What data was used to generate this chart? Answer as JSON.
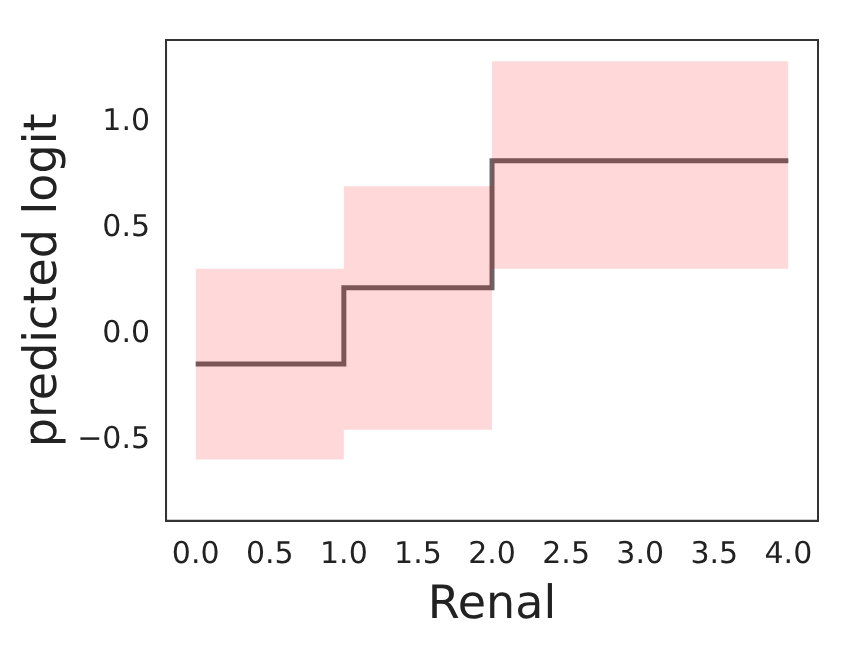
{
  "chart_data": {
    "type": "step",
    "xlabel": "Renal",
    "ylabel": "predicted logit",
    "x": [
      0,
      1,
      2,
      4
    ],
    "series": [
      {
        "color": "#666666",
        "values": [
          -0.14,
          0.22,
          0.82,
          0.82
        ],
        "lower": [
          -0.59,
          -0.45,
          0.31,
          0.31
        ],
        "upper": [
          0.31,
          0.7,
          1.29,
          1.29
        ]
      }
    ],
    "xlim": [
      -0.2,
      4.2
    ],
    "xticks": [
      {
        "value": 0,
        "label": "0.0"
      },
      0.5,
      {
        "value": 1,
        "label": "1.0"
      },
      1.5,
      {
        "value": 2,
        "label": "2.0"
      },
      2.5,
      {
        "value": 3,
        "label": "3.0"
      },
      3.5,
      {
        "value": 4,
        "label": "4.0"
      }
    ],
    "ylim": [
      -0.88,
      1.39
    ],
    "yticks": [
      {
        "value": -0.5,
        "label": "−0.5"
      },
      {
        "value": 0,
        "label": "0.0"
      },
      0.5,
      {
        "value": 1,
        "label": "1.0"
      }
    ],
    "grid": false,
    "legend": false
  }
}
